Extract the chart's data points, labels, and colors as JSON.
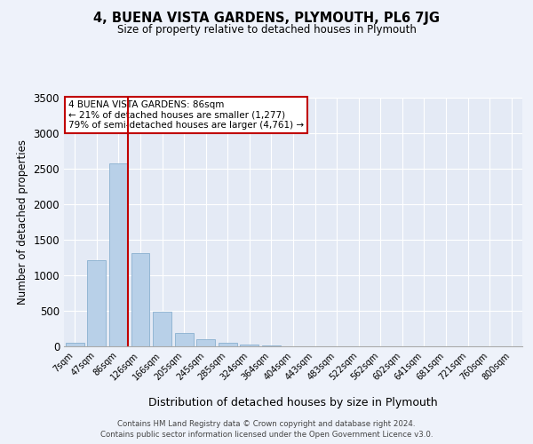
{
  "title": "4, BUENA VISTA GARDENS, PLYMOUTH, PL6 7JG",
  "subtitle": "Size of property relative to detached houses in Plymouth",
  "xlabel": "Distribution of detached houses by size in Plymouth",
  "ylabel": "Number of detached properties",
  "categories": [
    "7sqm",
    "47sqm",
    "86sqm",
    "126sqm",
    "166sqm",
    "205sqm",
    "245sqm",
    "285sqm",
    "324sqm",
    "364sqm",
    "404sqm",
    "443sqm",
    "483sqm",
    "522sqm",
    "562sqm",
    "602sqm",
    "641sqm",
    "681sqm",
    "721sqm",
    "760sqm",
    "800sqm"
  ],
  "values": [
    55,
    1210,
    2570,
    1310,
    490,
    185,
    105,
    55,
    20,
    10,
    5,
    2,
    1,
    0,
    0,
    0,
    0,
    0,
    0,
    0,
    0
  ],
  "bar_color": "#b8d0e8",
  "bar_edge_color": "#8ab0d0",
  "highlight_index": 2,
  "highlight_color": "#c00000",
  "annotation_box_text": "4 BUENA VISTA GARDENS: 86sqm\n← 21% of detached houses are smaller (1,277)\n79% of semi-detached houses are larger (4,761) →",
  "ylim": [
    0,
    3500
  ],
  "yticks": [
    0,
    500,
    1000,
    1500,
    2000,
    2500,
    3000,
    3500
  ],
  "footer_line1": "Contains HM Land Registry data © Crown copyright and database right 2024.",
  "footer_line2": "Contains public sector information licensed under the Open Government Licence v3.0.",
  "background_color": "#eef2fa",
  "plot_background": "#e4eaf5"
}
